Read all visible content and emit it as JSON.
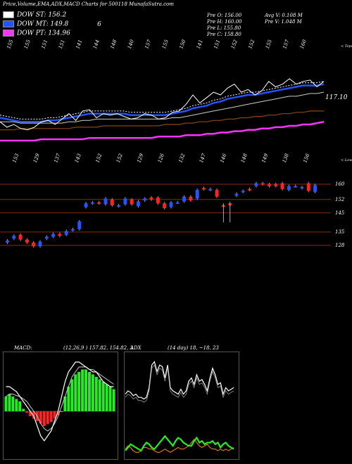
{
  "title": "Price,Volume,EMA,ADX,MACD Charts for 500118 MunafaSutra.com",
  "legend": [
    {
      "label": "DOW ST: 156.2",
      "color": "#ffffff"
    },
    {
      "label": "DOW MT: 149.8",
      "color": "#2255ff"
    },
    {
      "label": "DOW PT: 134.96",
      "color": "#ff33ff"
    }
  ],
  "extra_six": "6",
  "ohlc": {
    "o": "Pre   O: 156.00",
    "h": "Pre   H: 160.00",
    "l": "Pre   L: 155.80",
    "c": "Pre   C: 158.80",
    "avgv": "Avg V: 0.108   M",
    "prev": "Pre   V: 1.048   M"
  },
  "top_label": "< Tops",
  "low_label": "< Lows",
  "last_label": "117.10",
  "colors": {
    "up": "#2255ff",
    "down": "#ff2222",
    "grid": "#8b2a10"
  },
  "chart_data": [
    {
      "type": "candlestick",
      "price_levels": [
        160,
        152,
        145,
        135,
        128
      ],
      "tops": [
        "155",
        "155",
        "151",
        "151",
        "141",
        "144",
        "148",
        "140",
        "157",
        "155",
        "150",
        "141",
        "151",
        "152",
        "152",
        "155",
        "157",
        "160"
      ],
      "lows": [
        "153",
        "129",
        "137",
        "143",
        "152",
        "152",
        "129",
        "126",
        "132",
        "147",
        "146",
        "148",
        "149",
        "138",
        "156"
      ],
      "candles": [
        {
          "o": 129.5,
          "c": 130.5
        },
        {
          "o": 131.5,
          "c": 133
        },
        {
          "o": 133.5,
          "c": 131
        },
        {
          "o": 131,
          "c": 129.5
        },
        {
          "o": 129.5,
          "c": 127.5
        },
        {
          "o": 127.5,
          "c": 130
        },
        {
          "o": 131.5,
          "c": 132.5
        },
        {
          "o": 132.5,
          "c": 134
        },
        {
          "o": 134,
          "c": 133
        },
        {
          "o": 133.5,
          "c": 135.5
        },
        {
          "o": 136,
          "c": 136.5
        },
        {
          "o": 136.5,
          "c": 140.5
        },
        {
          "o": 148,
          "c": 150
        },
        {
          "o": 150,
          "c": 150.5
        },
        {
          "o": 150.5,
          "c": 150
        },
        {
          "o": 149.5,
          "c": 152.5
        },
        {
          "o": 152,
          "c": 149
        },
        {
          "o": 148.5,
          "c": 149
        },
        {
          "o": 149.5,
          "c": 152.5
        },
        {
          "o": 152,
          "c": 149.5
        },
        {
          "o": 148.5,
          "c": 151
        },
        {
          "o": 151.5,
          "c": 152.5
        },
        {
          "o": 153,
          "c": 152
        },
        {
          "o": 153,
          "c": 150
        },
        {
          "o": 150,
          "c": 147.5
        },
        {
          "o": 148,
          "c": 150.5
        },
        {
          "o": 150.5,
          "c": 150.5
        },
        {
          "o": 151,
          "c": 153.5
        },
        {
          "o": 153.5,
          "c": 151.5
        },
        {
          "o": 152.5,
          "c": 157
        },
        {
          "o": 158,
          "c": 157.5
        },
        {
          "o": 157,
          "c": 157.5
        },
        {
          "o": 157,
          "c": 153.5
        },
        {
          "o": 149,
          "c": 148.5
        },
        {
          "o": 150,
          "c": 149
        },
        {
          "o": 154,
          "c": 155
        },
        {
          "o": 156,
          "c": 156.5
        },
        {
          "o": 157.5,
          "c": 157
        },
        {
          "o": 159,
          "c": 160.5
        },
        {
          "o": 160.5,
          "c": 160
        },
        {
          "o": 160,
          "c": 159
        },
        {
          "o": 160,
          "c": 159
        },
        {
          "o": 160.5,
          "c": 157.5
        },
        {
          "o": 157,
          "c": 159
        },
        {
          "o": 159,
          "c": 159
        },
        {
          "o": 158,
          "c": 158.5
        },
        {
          "o": 160.5,
          "c": 156.5
        },
        {
          "o": 156,
          "c": 159.5
        }
      ]
    },
    {
      "type": "line",
      "series_names": [
        "price",
        "ema_short",
        "ema_mid",
        "ema_long",
        "dow_pt"
      ],
      "price": [
        160,
        156,
        158,
        155,
        154,
        156,
        160,
        161,
        158,
        162,
        166,
        161,
        168,
        169,
        163,
        166,
        165,
        166,
        164,
        162,
        163,
        166,
        165,
        162,
        163,
        167,
        168,
        173,
        180,
        174,
        178,
        182,
        180,
        185,
        188,
        182,
        184,
        180,
        183,
        190,
        186,
        188,
        192,
        188,
        190,
        191,
        186,
        190
      ],
      "ema_short": [
        163,
        162,
        161,
        160,
        160,
        160,
        160,
        161,
        161,
        162,
        163,
        164,
        165,
        166,
        166,
        166,
        166,
        166,
        166,
        165,
        165,
        165,
        165,
        165,
        165,
        166,
        167,
        168,
        170,
        171,
        172,
        174,
        175,
        177,
        178,
        179,
        180,
        180,
        181,
        182,
        183,
        184,
        185,
        186,
        187,
        187,
        187,
        188
      ],
      "ema_mid": [
        160,
        160,
        160,
        159,
        159,
        159,
        159,
        159,
        159,
        159,
        160,
        160,
        161,
        161,
        162,
        162,
        162,
        162,
        162,
        162,
        162,
        162,
        162,
        162,
        162,
        163,
        163,
        164,
        165,
        166,
        167,
        168,
        169,
        170,
        171,
        172,
        173,
        174,
        175,
        176,
        177,
        178,
        179,
        179,
        180,
        181,
        181,
        182
      ],
      "ema_long": [
        154,
        154,
        154,
        155,
        155,
        155,
        155,
        155,
        155,
        155,
        155,
        156,
        156,
        156,
        156,
        157,
        157,
        157,
        157,
        157,
        157,
        157,
        157,
        157,
        158,
        158,
        158,
        159,
        159,
        160,
        160,
        161,
        161,
        162,
        162,
        163,
        163,
        164,
        164,
        165,
        165,
        166,
        166,
        167,
        167,
        168,
        168,
        168
      ],
      "dow_pt": [
        146,
        146,
        146,
        146,
        146,
        146,
        147,
        147,
        147,
        147,
        147,
        147,
        147,
        148,
        148,
        148,
        148,
        148,
        148,
        148,
        148,
        148,
        148,
        149,
        149,
        149,
        149,
        150,
        150,
        150,
        151,
        151,
        152,
        152,
        153,
        153,
        154,
        154,
        155,
        155,
        156,
        156,
        157,
        157,
        158,
        158,
        159,
        160
      ]
    },
    {
      "type": "bar",
      "title": "MACD:",
      "params": "(12,26,9 ) 157.82,  154.82,  3",
      "histogram": [
        3,
        3.5,
        3,
        2.5,
        2,
        0.5,
        -0.3,
        -1,
        -1.5,
        -2,
        -2.5,
        -3,
        -2.6,
        -2.2,
        -1.5,
        -0.8,
        0,
        3,
        5,
        6.5,
        7.5,
        8,
        8.5,
        8.5,
        8,
        7.5,
        7,
        6.5,
        6,
        5.5,
        5,
        4.5
      ],
      "macd": [
        5,
        5,
        4.5,
        4,
        3,
        2,
        1,
        0,
        -1,
        -3,
        -5,
        -6,
        -5,
        -4,
        -2,
        0,
        3,
        6,
        8,
        9,
        10,
        10,
        9.5,
        9,
        8.5,
        8,
        8,
        7,
        6,
        5.5,
        5,
        5
      ],
      "signal": [
        3,
        3.5,
        3.5,
        3.2,
        3,
        2.5,
        2,
        1,
        0,
        -1,
        -2.5,
        -3.5,
        -4,
        -3.5,
        -2.5,
        -1,
        1,
        3,
        5,
        7,
        8,
        9,
        9,
        9,
        8.5,
        8.5,
        8,
        7.5,
        7,
        6.5,
        6,
        5.5
      ]
    },
    {
      "type": "line",
      "title": "ADX",
      "params": "(14 day) 18, ~18, 23",
      "adx": [
        38,
        40,
        39,
        37,
        38,
        36,
        36,
        35,
        36,
        42,
        56,
        58,
        52,
        56,
        55,
        48,
        56,
        42,
        40,
        39,
        38,
        41,
        38,
        40,
        46,
        48,
        44,
        50,
        46,
        47,
        44,
        40,
        48,
        54,
        50,
        44,
        45,
        38,
        42,
        40,
        41,
        42
      ],
      "di_plus": [
        3,
        5,
        7,
        6,
        5,
        4,
        3,
        6,
        8,
        7,
        5,
        4,
        6,
        8,
        10,
        12,
        10,
        8,
        6,
        9,
        11,
        10,
        8,
        7,
        6,
        6,
        9,
        11,
        8,
        9,
        7,
        8,
        8,
        9,
        7,
        8,
        5,
        7,
        8,
        6,
        5,
        4
      ],
      "di_minus": [
        4,
        6,
        5,
        3,
        2,
        2,
        3,
        5,
        5,
        4,
        4,
        3,
        2,
        2,
        3,
        4,
        3,
        2,
        3,
        4,
        5,
        4,
        4,
        5,
        6,
        8,
        10,
        8,
        6,
        5,
        6,
        7,
        5,
        4,
        4,
        3,
        4,
        3,
        4,
        3,
        4,
        5
      ]
    }
  ]
}
